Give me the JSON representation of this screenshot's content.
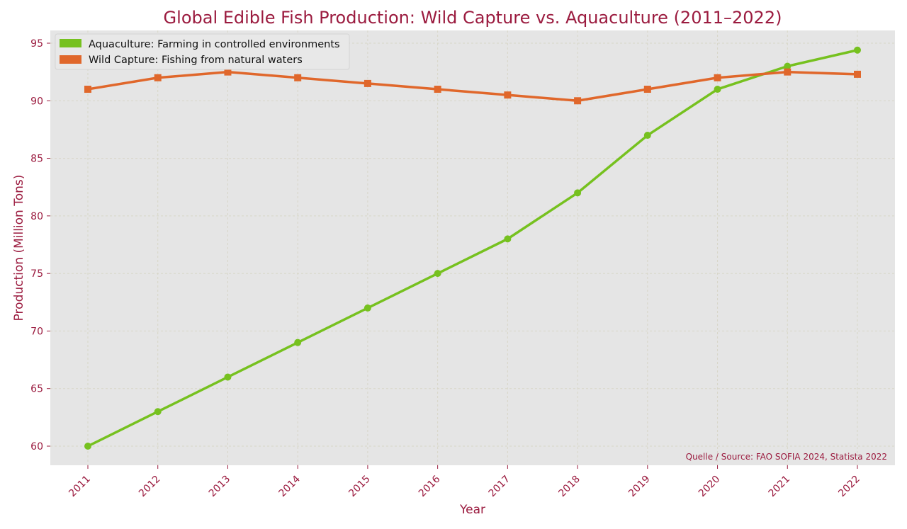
{
  "chart_data": {
    "type": "line",
    "title": "Global Edible Fish Production: Wild Capture vs. Aquaculture (2011–2022)",
    "xlabel": "Year",
    "ylabel": "Production (Million Tons)",
    "x": [
      2011,
      2012,
      2013,
      2014,
      2015,
      2016,
      2017,
      2018,
      2019,
      2020,
      2021,
      2022
    ],
    "ylim": [
      58.3,
      96.1
    ],
    "yticks": [
      60,
      65,
      70,
      75,
      80,
      85,
      90,
      95
    ],
    "grid": true,
    "legend_position": "upper left",
    "series": [
      {
        "name": "Aquaculture: Farming in controlled environments",
        "color": "#76c11f",
        "marker": "circle",
        "values": [
          60,
          63,
          66,
          69,
          72,
          75,
          78,
          82,
          87,
          91,
          93,
          94.4
        ]
      },
      {
        "name": "Wild Capture: Fishing from natural waters",
        "color": "#e0672b",
        "marker": "square",
        "values": [
          91,
          92,
          92.5,
          92,
          91.5,
          91,
          90.5,
          90,
          91,
          92,
          92.5,
          92.3
        ]
      }
    ],
    "annotation": "Quelle / Source: FAO SOFIA 2024, Statista 2022"
  },
  "colors": {
    "plot_background": "#e5e5e5",
    "text_accent": "#9b1b3f",
    "grid": "#d8d6c8"
  }
}
